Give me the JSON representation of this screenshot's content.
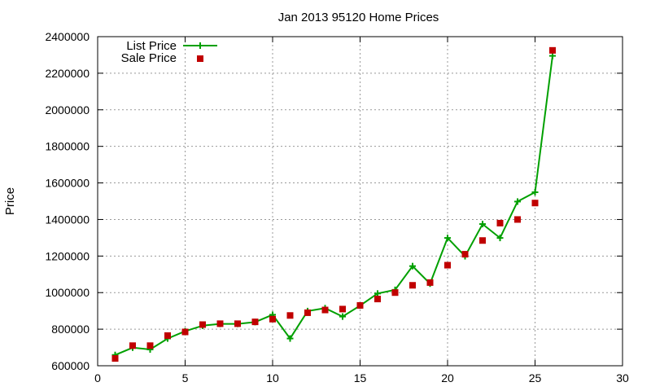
{
  "chart_data": {
    "type": "line",
    "title": "Jan 2013 95120 Home Prices",
    "xlabel": "",
    "ylabel": "Price",
    "xlim": [
      0,
      30
    ],
    "ylim": [
      600000,
      2400000
    ],
    "xticks": [
      0,
      5,
      10,
      15,
      20,
      25,
      30
    ],
    "yticks": [
      600000,
      800000,
      1000000,
      1200000,
      1400000,
      1600000,
      1800000,
      2000000,
      2200000,
      2400000
    ],
    "grid": true,
    "legend_position": "top-left",
    "series": [
      {
        "name": "List Price",
        "style": "line-with-plus-markers",
        "color": "#00a000",
        "x": [
          1,
          2,
          3,
          4,
          5,
          6,
          7,
          8,
          9,
          10,
          11,
          12,
          13,
          14,
          15,
          16,
          17,
          18,
          19,
          20,
          21,
          22,
          23,
          24,
          25,
          26
        ],
        "y": [
          659000,
          699000,
          689000,
          749000,
          789000,
          819000,
          829000,
          829000,
          839000,
          879000,
          749000,
          899000,
          915000,
          869000,
          929000,
          995000,
          1015000,
          1145000,
          1049000,
          1299000,
          1199000,
          1375000,
          1299000,
          1498000,
          1549000,
          2295000
        ]
      },
      {
        "name": "Sale Price",
        "style": "square-markers",
        "color": "#c00000",
        "x": [
          1,
          2,
          3,
          4,
          5,
          6,
          7,
          8,
          9,
          10,
          11,
          12,
          13,
          14,
          15,
          16,
          17,
          18,
          19,
          20,
          21,
          22,
          23,
          24,
          25,
          26
        ],
        "y": [
          640000,
          710000,
          710000,
          765000,
          785000,
          825000,
          830000,
          830000,
          840000,
          855000,
          875000,
          890000,
          905000,
          910000,
          930000,
          965000,
          1000000,
          1040000,
          1055000,
          1150000,
          1210000,
          1285000,
          1380000,
          1400000,
          1490000,
          2325000
        ]
      }
    ]
  }
}
